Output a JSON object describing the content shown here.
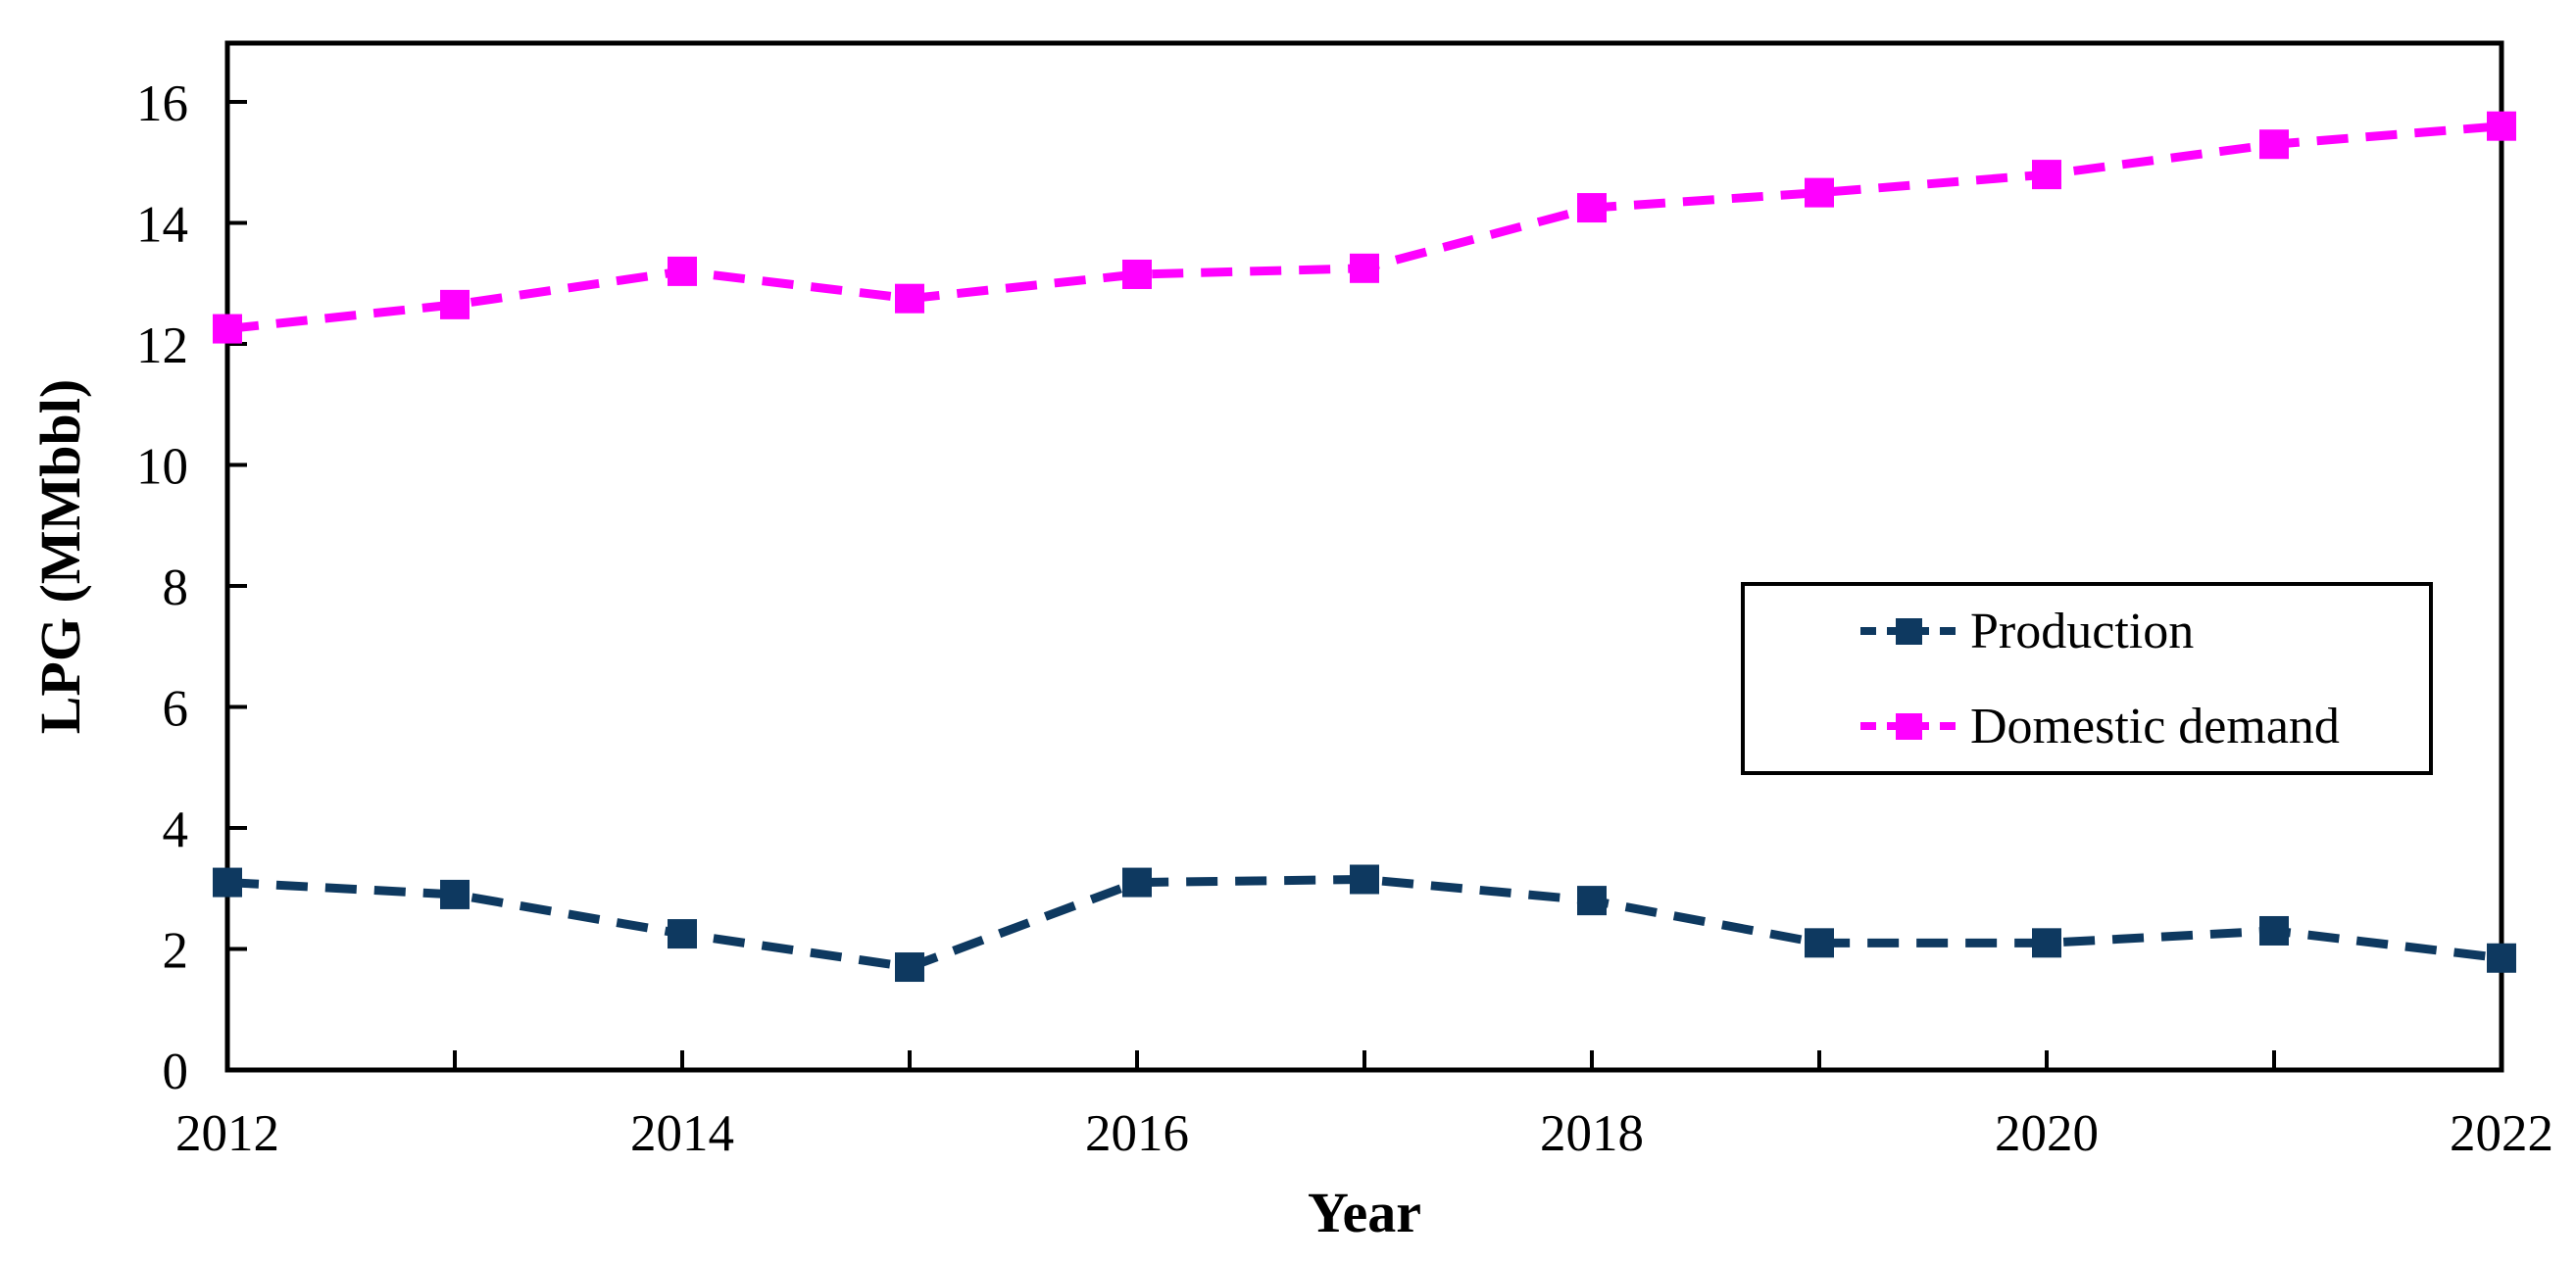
{
  "chart_data": {
    "type": "line",
    "x": [
      2012,
      2013,
      2014,
      2015,
      2016,
      2017,
      2018,
      2019,
      2020,
      2021,
      2022
    ],
    "series": [
      {
        "name": "Production",
        "color": "#0E3960",
        "marker": "square",
        "linestyle": "dashed",
        "values": [
          3.1,
          2.9,
          2.25,
          1.7,
          3.1,
          3.15,
          2.8,
          2.1,
          2.1,
          2.3,
          1.85
        ]
      },
      {
        "name": "Domestic demand",
        "color": "#FF00FF",
        "marker": "square",
        "linestyle": "dashed",
        "values": [
          12.25,
          12.65,
          13.2,
          12.75,
          13.15,
          13.25,
          14.25,
          14.5,
          14.8,
          15.3,
          15.6
        ]
      }
    ],
    "title": "",
    "xlabel": "Year",
    "ylabel": "LPG (MMbbl)",
    "ylim": [
      0,
      16
    ],
    "yticks": [
      0,
      2,
      4,
      6,
      8,
      10,
      12,
      14,
      16
    ],
    "xticks_labeled": [
      2012,
      2014,
      2016,
      2018,
      2020,
      2022
    ],
    "xticks_minor_every_year": true,
    "grid": false,
    "frame_color": "#000000",
    "legend_position": "inside-right",
    "legend": [
      "Production",
      "Domestic demand"
    ]
  }
}
